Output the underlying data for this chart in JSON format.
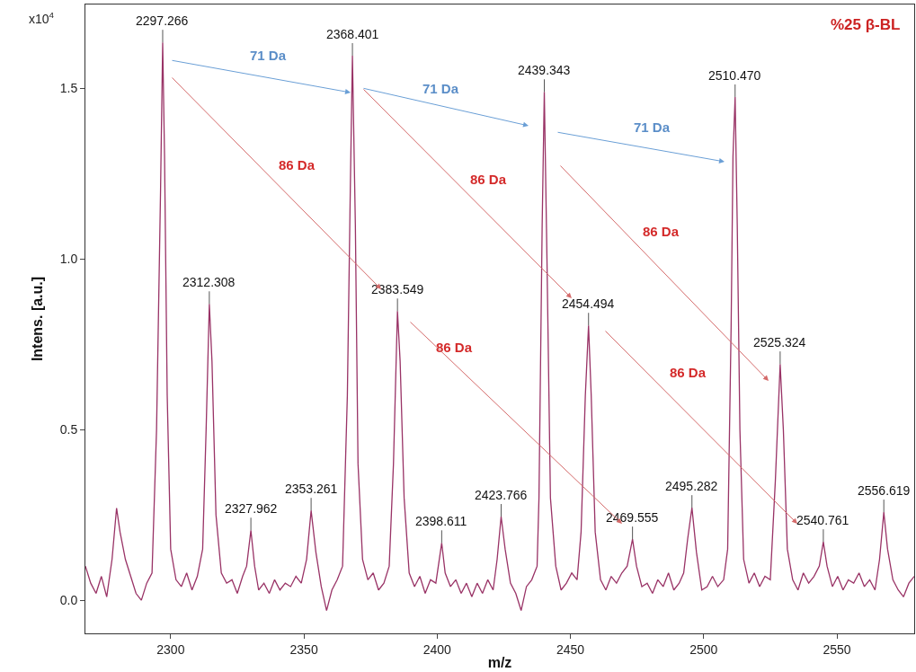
{
  "chart_data": {
    "type": "line",
    "xlabel": "m/z",
    "ylabel": "Intens. [a.u.]",
    "xlim": [
      2268,
      2579
    ],
    "xticks": [
      2300,
      2350,
      2400,
      2450,
      2500,
      2550
    ],
    "ylim": [
      -0.097,
      1.745
    ],
    "yticks": [
      {
        "value": 0,
        "label": "0.0"
      },
      0.5,
      {
        "value": 1,
        "label": "1.0"
      },
      1.5
    ],
    "marker": "none",
    "line_style": "solid",
    "series": [
      {
        "color": "#993366",
        "x": [
          2268,
          2270,
          2272,
          2274,
          2276,
          2278,
          2279.7,
          2281,
          2283,
          2285,
          2287,
          2289,
          2291,
          2293,
          2294.7,
          2296.2,
          2297,
          2297.7,
          2298.7,
          2300,
          2302,
          2304,
          2306,
          2308,
          2310,
          2312,
          2313.3,
          2314.5,
          2315.5,
          2317,
          2319,
          2321,
          2323,
          2325,
          2327,
          2328.5,
          2330.1,
          2331.5,
          2333,
          2335,
          2337,
          2339,
          2341,
          2343,
          2345,
          2347,
          2349,
          2351,
          2352.7,
          2354.5,
          2356.5,
          2358.5,
          2360.5,
          2362.5,
          2364.5,
          2366.3,
          2367.4,
          2368.2,
          2369.3,
          2370.3,
          2372,
          2374,
          2376,
          2378,
          2380,
          2382,
          2383.6,
          2385.1,
          2386.1,
          2387.6,
          2389.5,
          2391.5,
          2393.5,
          2395.5,
          2397.5,
          2399.5,
          2401.7,
          2403,
          2405,
          2407,
          2409,
          2411,
          2413,
          2415,
          2417,
          2419,
          2421,
          2422.5,
          2424,
          2425.5,
          2427.5,
          2429.5,
          2431.5,
          2433.5,
          2435.5,
          2437.5,
          2438.2,
          2439.4,
          2440.2,
          2441.2,
          2442.5,
          2444.5,
          2446.5,
          2448.5,
          2450.5,
          2452.5,
          2454,
          2455.6,
          2456.8,
          2457.8,
          2459.3,
          2461.3,
          2463.3,
          2465.3,
          2467.3,
          2469.3,
          2471.3,
          2473.3,
          2474.8,
          2476.8,
          2478.8,
          2480.8,
          2482.8,
          2484.8,
          2486.8,
          2488.8,
          2490.8,
          2492.5,
          2494,
          2495.6,
          2497.3,
          2499.3,
          2501.3,
          2503.3,
          2505.3,
          2507.5,
          2509,
          2510.3,
          2511,
          2511.8,
          2512.6,
          2513.6,
          2515,
          2517,
          2519,
          2521,
          2523,
          2525,
          2526.9,
          2528.7,
          2529.9,
          2531.4,
          2533.4,
          2535.4,
          2537.4,
          2539.4,
          2541.4,
          2543.4,
          2544.9,
          2546.3,
          2548.3,
          2550.3,
          2552.3,
          2554.3,
          2556.3,
          2558.3,
          2560.3,
          2562.3,
          2564.3,
          2566,
          2567.6,
          2569,
          2571,
          2573,
          2575,
          2577,
          2579
        ],
        "values": [
          0.1,
          0.05,
          0.02,
          0.07,
          0.01,
          0.12,
          0.27,
          0.2,
          0.12,
          0.07,
          0.02,
          0.0,
          0.05,
          0.08,
          0.5,
          1.2,
          1.634,
          1.3,
          0.6,
          0.15,
          0.06,
          0.04,
          0.08,
          0.03,
          0.07,
          0.15,
          0.5,
          0.868,
          0.7,
          0.25,
          0.08,
          0.05,
          0.06,
          0.02,
          0.07,
          0.1,
          0.205,
          0.1,
          0.03,
          0.05,
          0.02,
          0.06,
          0.03,
          0.05,
          0.04,
          0.07,
          0.05,
          0.12,
          0.263,
          0.14,
          0.04,
          -0.03,
          0.03,
          0.06,
          0.1,
          0.6,
          1.2,
          1.595,
          1.1,
          0.4,
          0.12,
          0.06,
          0.08,
          0.03,
          0.05,
          0.1,
          0.4,
          0.847,
          0.7,
          0.3,
          0.08,
          0.04,
          0.07,
          0.02,
          0.06,
          0.05,
          0.168,
          0.08,
          0.04,
          0.06,
          0.02,
          0.05,
          0.01,
          0.05,
          0.02,
          0.06,
          0.03,
          0.12,
          0.245,
          0.15,
          0.05,
          0.02,
          -0.03,
          0.04,
          0.06,
          0.1,
          0.3,
          1.1,
          1.489,
          1.0,
          0.3,
          0.1,
          0.03,
          0.05,
          0.08,
          0.06,
          0.2,
          0.6,
          0.805,
          0.6,
          0.2,
          0.06,
          0.03,
          0.07,
          0.05,
          0.08,
          0.1,
          0.179,
          0.1,
          0.04,
          0.05,
          0.02,
          0.06,
          0.04,
          0.08,
          0.03,
          0.05,
          0.08,
          0.18,
          0.271,
          0.14,
          0.03,
          0.04,
          0.07,
          0.04,
          0.06,
          0.15,
          0.8,
          1.3,
          1.474,
          1.1,
          0.5,
          0.12,
          0.05,
          0.08,
          0.04,
          0.07,
          0.06,
          0.35,
          0.692,
          0.5,
          0.15,
          0.06,
          0.03,
          0.08,
          0.05,
          0.07,
          0.1,
          0.171,
          0.1,
          0.04,
          0.07,
          0.03,
          0.06,
          0.05,
          0.08,
          0.04,
          0.06,
          0.03,
          0.12,
          0.258,
          0.15,
          0.06,
          0.03,
          0.01,
          0.05,
          0.07
        ]
      }
    ],
    "annotations": [
      "x10$^{4}$",
      "%25 β-BL",
      {
        "text": "2297.266",
        "x": 2297,
        "y": 1.634
      },
      {
        "text": "2312.308",
        "x": 2314.5,
        "y": 0.868
      },
      {
        "text": "2327.962",
        "x": 2330.1,
        "y": 0.205
      },
      {
        "text": "2353.261",
        "x": 2352.7,
        "y": 0.263
      },
      {
        "text": "2368.401",
        "x": 2368.2,
        "y": 1.595
      },
      {
        "text": "2383.549",
        "x": 2385.1,
        "y": 0.847
      },
      {
        "text": "2398.611",
        "x": 2401.7,
        "y": 0.168
      },
      {
        "text": "2423.766",
        "x": 2424,
        "y": 0.245
      },
      {
        "text": "2439.343",
        "x": 2440.2,
        "y": 1.489
      },
      {
        "text": "2454.494",
        "x": 2456.8,
        "y": 0.805
      },
      {
        "text": "2469.555",
        "x": 2473.3,
        "y": 0.179
      },
      {
        "text": "2495.282",
        "x": 2495.6,
        "y": 0.271
      },
      {
        "text": "2510.470",
        "x": 2511.8,
        "y": 1.474
      },
      {
        "text": "2525.324",
        "x": 2528.7,
        "y": 0.692
      },
      {
        "text": "2540.761",
        "x": 2544.9,
        "y": 0.171
      },
      {
        "text": "2556.619",
        "x": 2567.6,
        "y": 0.258
      },
      "71 Da",
      "71 Da",
      "71 Da",
      "86 Da",
      "86 Da",
      "86 Da",
      "86 Da",
      "86 Da"
    ]
  }
}
